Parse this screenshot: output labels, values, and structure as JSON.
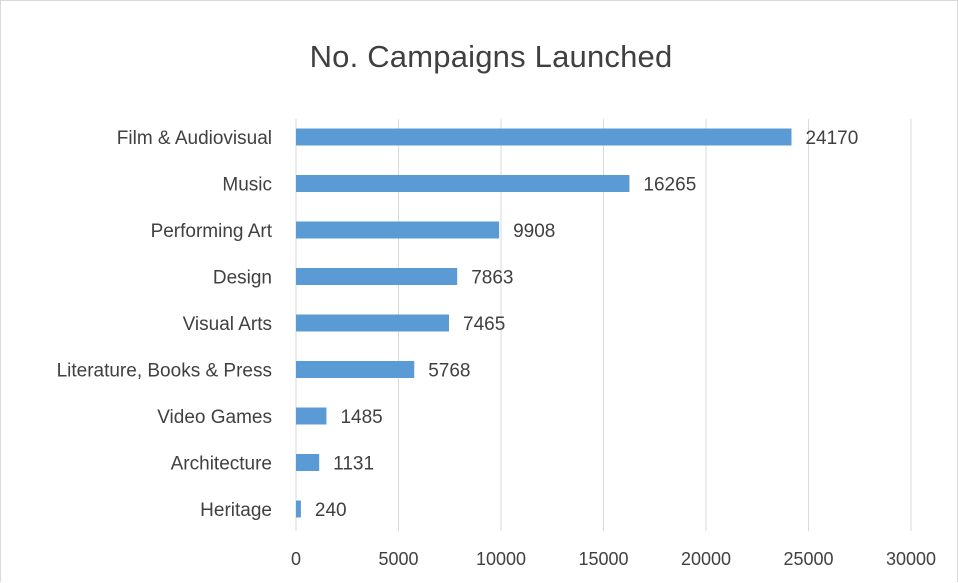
{
  "chart_data": {
    "type": "bar",
    "orientation": "horizontal",
    "title": "No. Campaigns Launched",
    "xlabel": "",
    "ylabel": "",
    "categories": [
      "Film & Audiovisual",
      "Music",
      "Performing Art",
      "Design",
      "Visual Arts",
      "Literature, Books & Press",
      "Video Games",
      "Architecture",
      "Heritage"
    ],
    "values": [
      24170,
      16265,
      9908,
      7863,
      7465,
      5768,
      1485,
      1131,
      240
    ],
    "data_labels": [
      "24170",
      "16265",
      "9908",
      "7863",
      "7465",
      "5768",
      "1485",
      "1131",
      "240"
    ],
    "xlim": [
      0,
      30000
    ],
    "x_ticks": [
      0,
      5000,
      10000,
      15000,
      20000,
      25000,
      30000
    ],
    "x_tick_labels": [
      "0",
      "5000",
      "10000",
      "15000",
      "20000",
      "25000",
      "30000"
    ],
    "grid": "vertical",
    "legend": "none",
    "colors": {
      "bar": "#5b9bd5",
      "grid": "#d9d9d9",
      "text": "#404040"
    }
  }
}
